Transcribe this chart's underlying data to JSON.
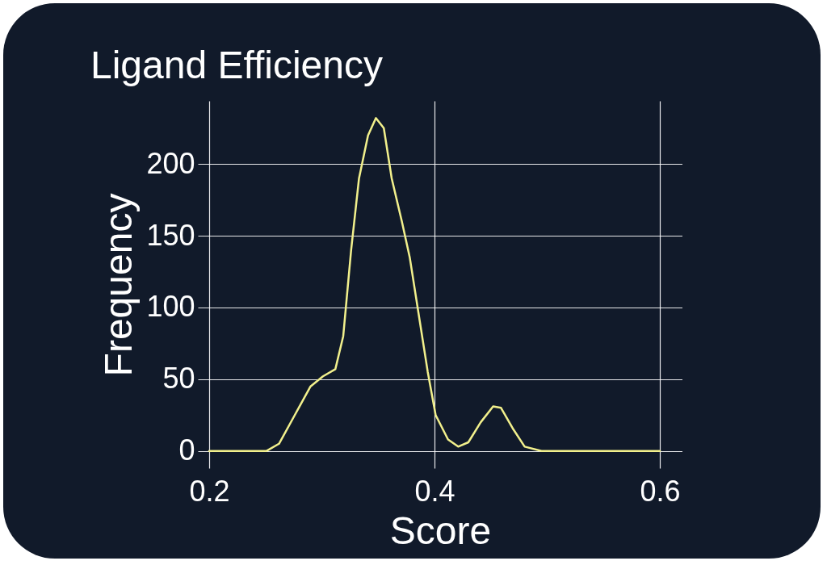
{
  "chart_data": {
    "type": "line",
    "title": "Ligand Efficiency",
    "xlabel": "Score",
    "ylabel": "Frequency",
    "x": [
      0.2,
      0.251,
      0.262,
      0.276,
      0.29,
      0.301,
      0.312,
      0.319,
      0.326,
      0.333,
      0.341,
      0.348,
      0.355,
      0.362,
      0.371,
      0.378,
      0.387,
      0.394,
      0.401,
      0.412,
      0.421,
      0.43,
      0.441,
      0.452,
      0.459,
      0.47,
      0.48,
      0.495,
      0.6
    ],
    "series": [
      {
        "color": "#f2f08c",
        "values": [
          0,
          0,
          5,
          25,
          45,
          52,
          57,
          80,
          140,
          190,
          220,
          232,
          225,
          190,
          160,
          135,
          90,
          55,
          25,
          8,
          3,
          6,
          20,
          31,
          30,
          15,
          3,
          0,
          0
        ]
      }
    ],
    "xlim": [
      0.19,
      0.62
    ],
    "ylim": [
      -12,
      244
    ],
    "xticks": [
      0.2,
      0.4,
      0.6
    ],
    "yticks": [
      0,
      50,
      100,
      150,
      200
    ],
    "grid": true,
    "legend": false,
    "marker": "none",
    "line_style": "solid"
  }
}
